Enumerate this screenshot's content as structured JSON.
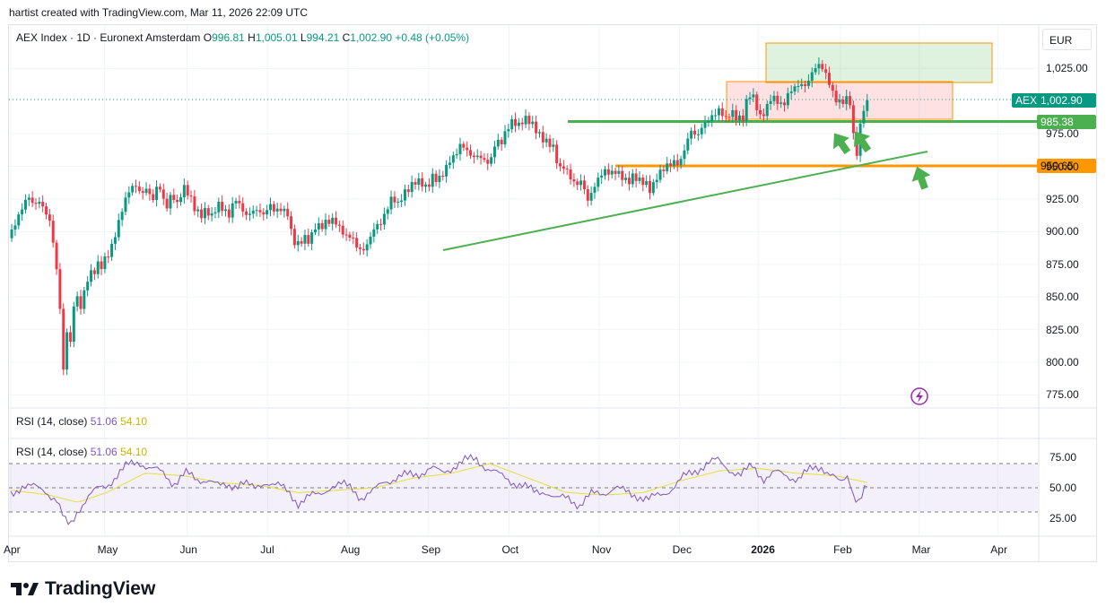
{
  "header": {
    "credit": "hartist created with TradingView.com, Mar 11, 2026 22:09 UTC"
  },
  "legend": {
    "symbol": "AEX Index · 1D · Euronext Amsterdam",
    "o_label": "O",
    "o": "996.81",
    "h_label": "H",
    "h": "1,005.01",
    "l_label": "L",
    "l": "994.21",
    "c_label": "C",
    "c": "1,002.90",
    "chg": "+0.48 (+0.05%)"
  },
  "currency": "EUR",
  "tags": {
    "aex_name": "AEX",
    "aex_value": "1,002.90",
    "green_level": "985.38",
    "orange_level": "950.65"
  },
  "rsi": {
    "label": "RSI (14, close)",
    "rsi_value": "51.06",
    "ma_value": "54.10",
    "ticks": [
      "75.00",
      "50.00",
      "25.00"
    ]
  },
  "brand": "TradingView",
  "colors": {
    "up": "#089981",
    "down": "#f23645",
    "green_line": "#4caf50",
    "orange_line": "#ff9800",
    "rsi": "#7e57c2",
    "rsi_ma": "#e6df3c"
  },
  "chart_data": [
    {
      "type": "candlestick",
      "title": "AEX Index · 1D · Euronext Amsterdam",
      "y_ticks": [
        "1,025.00",
        "975.00",
        "950.00",
        "925.00",
        "900.00",
        "875.00",
        "850.00",
        "825.00",
        "800.00",
        "775.00"
      ],
      "ylim": [
        765,
        1050
      ],
      "x_ticks": [
        "Apr",
        "May",
        "Jun",
        "Jul",
        "Aug",
        "Sep",
        "Oct",
        "Nov",
        "Dec",
        "2026",
        "Feb",
        "Mar",
        "Apr"
      ],
      "close_path": [
        [
          0,
          895
        ],
        [
          6,
          905
        ],
        [
          12,
          915
        ],
        [
          18,
          925
        ],
        [
          24,
          918
        ],
        [
          30,
          922
        ],
        [
          36,
          915
        ],
        [
          40,
          910
        ],
        [
          44,
          895
        ],
        [
          48,
          870
        ],
        [
          52,
          840
        ],
        [
          55,
          795
        ],
        [
          58,
          830
        ],
        [
          62,
          815
        ],
        [
          66,
          850
        ],
        [
          70,
          852
        ],
        [
          74,
          845
        ],
        [
          78,
          862
        ],
        [
          82,
          872
        ],
        [
          86,
          870
        ],
        [
          90,
          878
        ],
        [
          94,
          875
        ],
        [
          98,
          880
        ],
        [
          102,
          884
        ],
        [
          106,
          890
        ],
        [
          112,
          905
        ],
        [
          118,
          920
        ],
        [
          124,
          930
        ],
        [
          130,
          933
        ],
        [
          136,
          925
        ],
        [
          142,
          930
        ],
        [
          148,
          920
        ],
        [
          154,
          935
        ],
        [
          158,
          925
        ],
        [
          162,
          915
        ],
        [
          168,
          928
        ],
        [
          174,
          920
        ],
        [
          180,
          935
        ],
        [
          186,
          930
        ],
        [
          192,
          920
        ],
        [
          198,
          915
        ],
        [
          204,
          920
        ],
        [
          210,
          915
        ],
        [
          216,
          925
        ],
        [
          222,
          920
        ],
        [
          228,
          915
        ],
        [
          234,
          928
        ],
        [
          240,
          920
        ],
        [
          246,
          912
        ],
        [
          252,
          915
        ],
        [
          258,
          915
        ],
        [
          264,
          910
        ],
        [
          270,
          918
        ],
        [
          276,
          912
        ],
        [
          282,
          914
        ],
        [
          290,
          910
        ],
        [
          294,
          890
        ],
        [
          300,
          888
        ],
        [
          306,
          894
        ],
        [
          312,
          892
        ],
        [
          318,
          905
        ],
        [
          324,
          905
        ],
        [
          330,
          910
        ],
        [
          338,
          912
        ],
        [
          344,
          905
        ],
        [
          350,
          900
        ],
        [
          356,
          900
        ],
        [
          362,
          890
        ],
        [
          368,
          888
        ],
        [
          374,
          895
        ],
        [
          380,
          905
        ],
        [
          386,
          906
        ],
        [
          392,
          915
        ],
        [
          398,
          925
        ],
        [
          404,
          918
        ],
        [
          410,
          926
        ],
        [
          416,
          930
        ],
        [
          422,
          935
        ],
        [
          428,
          935
        ],
        [
          434,
          930
        ],
        [
          440,
          940
        ],
        [
          446,
          938
        ],
        [
          452,
          945
        ],
        [
          458,
          955
        ],
        [
          464,
          960
        ],
        [
          470,
          970
        ],
        [
          476,
          965
        ],
        [
          482,
          960
        ],
        [
          488,
          962
        ],
        [
          494,
          958
        ],
        [
          500,
          955
        ],
        [
          506,
          972
        ],
        [
          512,
          970
        ],
        [
          518,
          980
        ],
        [
          524,
          985
        ],
        [
          530,
          980
        ],
        [
          536,
          985
        ],
        [
          542,
          982
        ],
        [
          548,
          975
        ],
        [
          554,
          968
        ],
        [
          560,
          965
        ],
        [
          566,
          962
        ],
        [
          572,
          945
        ],
        [
          578,
          948
        ],
        [
          584,
          940
        ],
        [
          590,
          935
        ],
        [
          596,
          940
        ],
        [
          602,
          925
        ],
        [
          608,
          935
        ],
        [
          614,
          945
        ],
        [
          620,
          950
        ],
        [
          626,
          948
        ],
        [
          632,
          950
        ],
        [
          638,
          945
        ],
        [
          644,
          940
        ],
        [
          650,
          945
        ],
        [
          656,
          940
        ],
        [
          662,
          938
        ],
        [
          668,
          930
        ],
        [
          674,
          940
        ],
        [
          680,
          945
        ],
        [
          686,
          948
        ],
        [
          692,
          950
        ],
        [
          698,
          948
        ],
        [
          704,
          962
        ],
        [
          710,
          975
        ],
        [
          716,
          970
        ],
        [
          722,
          980
        ],
        [
          728,
          985
        ],
        [
          734,
          990
        ],
        [
          740,
          995
        ],
        [
          746,
          988
        ],
        [
          752,
          995
        ],
        [
          758,
          990
        ],
        [
          764,
          990
        ],
        [
          770,
          1010
        ],
        [
          776,
          1005
        ],
        [
          782,
          990
        ],
        [
          788,
          995
        ],
        [
          794,
          1005
        ],
        [
          800,
          1000
        ],
        [
          806,
          995
        ],
        [
          812,
          1005
        ],
        [
          818,
          1008
        ],
        [
          824,
          1010
        ],
        [
          830,
          1008
        ],
        [
          836,
          1018
        ],
        [
          842,
          1025
        ],
        [
          848,
          1022
        ],
        [
          854,
          1012
        ],
        [
          860,
          1000
        ],
        [
          866,
          998
        ],
        [
          872,
          1002
        ],
        [
          876,
          1000
        ],
        [
          880,
          970
        ],
        [
          884,
          960
        ],
        [
          888,
          995
        ],
        [
          892,
          1000
        ],
        [
          896,
          1003
        ]
      ]
    },
    {
      "type": "line",
      "title": "RSI (14, close)",
      "ylim": [
        10,
        90
      ],
      "y_ticks": [
        "75.00",
        "50.00",
        "25.00"
      ],
      "series": [
        {
          "name": "RSI",
          "values": [
            [
              0,
              45
            ],
            [
              12,
              52
            ],
            [
              24,
              50
            ],
            [
              36,
              48
            ],
            [
              48,
              40
            ],
            [
              56,
              22
            ],
            [
              62,
              18
            ],
            [
              70,
              32
            ],
            [
              80,
              42
            ],
            [
              90,
              48
            ],
            [
              100,
              52
            ],
            [
              110,
              60
            ],
            [
              122,
              68
            ],
            [
              134,
              72
            ],
            [
              146,
              66
            ],
            [
              158,
              62
            ],
            [
              170,
              54
            ],
            [
              182,
              62
            ],
            [
              194,
              56
            ],
            [
              206,
              58
            ],
            [
              218,
              50
            ],
            [
              230,
              52
            ],
            [
              242,
              55
            ],
            [
              254,
              48
            ],
            [
              266,
              56
            ],
            [
              278,
              52
            ],
            [
              290,
              46
            ],
            [
              300,
              38
            ],
            [
              310,
              42
            ],
            [
              322,
              44
            ],
            [
              334,
              52
            ],
            [
              346,
              52
            ],
            [
              356,
              50
            ],
            [
              366,
              42
            ],
            [
              378,
              46
            ],
            [
              390,
              56
            ],
            [
              402,
              58
            ],
            [
              414,
              60
            ],
            [
              426,
              62
            ],
            [
              438,
              66
            ],
            [
              450,
              62
            ],
            [
              462,
              68
            ],
            [
              474,
              72
            ],
            [
              486,
              74
            ],
            [
              498,
              66
            ],
            [
              510,
              60
            ],
            [
              522,
              56
            ],
            [
              534,
              52
            ],
            [
              546,
              46
            ],
            [
              558,
              48
            ],
            [
              570,
              40
            ],
            [
              582,
              42
            ],
            [
              594,
              36
            ],
            [
              606,
              44
            ],
            [
              618,
              46
            ],
            [
              630,
              50
            ],
            [
              642,
              46
            ],
            [
              654,
              44
            ],
            [
              666,
              40
            ],
            [
              678,
              44
            ],
            [
              690,
              50
            ],
            [
              702,
              58
            ],
            [
              714,
              64
            ],
            [
              726,
              70
            ],
            [
              738,
              72
            ],
            [
              750,
              66
            ],
            [
              762,
              60
            ],
            [
              774,
              68
            ],
            [
              786,
              58
            ],
            [
              798,
              62
            ],
            [
              810,
              60
            ],
            [
              822,
              58
            ],
            [
              834,
              64
            ],
            [
              846,
              68
            ],
            [
              858,
              60
            ],
            [
              866,
              52
            ],
            [
              874,
              60
            ],
            [
              880,
              44
            ],
            [
              886,
              40
            ],
            [
              890,
              48
            ],
            [
              896,
              51
            ]
          ]
        },
        {
          "name": "RSI MA",
          "values": [
            [
              0,
              48
            ],
            [
              40,
              44
            ],
            [
              70,
              38
            ],
            [
              100,
              46
            ],
            [
              140,
              62
            ],
            [
              180,
              60
            ],
            [
              220,
              54
            ],
            [
              260,
              52
            ],
            [
              300,
              46
            ],
            [
              340,
              48
            ],
            [
              380,
              50
            ],
            [
              420,
              58
            ],
            [
              460,
              62
            ],
            [
              500,
              70
            ],
            [
              540,
              58
            ],
            [
              580,
              46
            ],
            [
              620,
              44
            ],
            [
              660,
              46
            ],
            [
              700,
              56
            ],
            [
              740,
              64
            ],
            [
              780,
              66
            ],
            [
              820,
              62
            ],
            [
              860,
              60
            ],
            [
              896,
              54
            ]
          ]
        }
      ]
    }
  ]
}
